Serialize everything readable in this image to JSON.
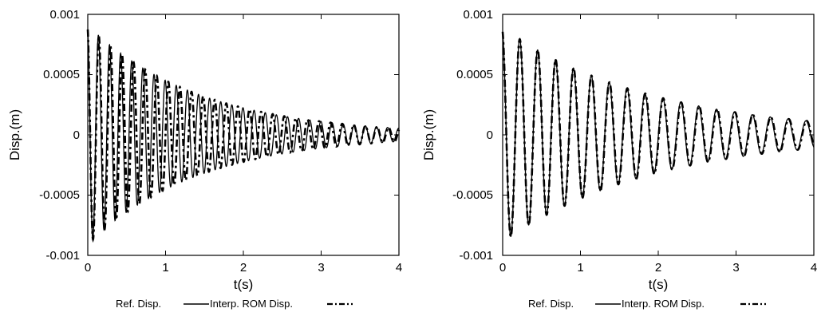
{
  "chart_data": [
    {
      "type": "line",
      "title": "",
      "xlabel": "t(s)",
      "ylabel": "Disp.(m)",
      "xlim": [
        0,
        4
      ],
      "ylim": [
        -0.001,
        0.001
      ],
      "xticks": [
        "0",
        "1",
        "2",
        "3",
        "4"
      ],
      "yticks": [
        "0.001",
        "0.0005",
        "0",
        "-0.0005",
        "-0.001"
      ],
      "grid": false,
      "legend_position": "bottom",
      "legend": [
        "Ref. Disp.",
        "Interp. ROM Disp."
      ],
      "series": [
        {
          "name": "Ref. Disp.",
          "style": "solid",
          "amplitude0": 0.00091,
          "decay_rate": 0.7,
          "period": 0.143,
          "phase": 1.85
        },
        {
          "name": "Interp. ROM Disp.",
          "style": "dashed",
          "amplitude0": 0.00091,
          "decay_rate": 0.7,
          "period": 0.149,
          "phase": 1.85
        }
      ]
    },
    {
      "type": "line",
      "title": "",
      "xlabel": "t(s)",
      "ylabel": "Disp.(m)",
      "xlim": [
        0,
        4
      ],
      "ylim": [
        -0.001,
        0.001
      ],
      "xticks": [
        "0",
        "1",
        "2",
        "3",
        "4"
      ],
      "yticks": [
        "0.001",
        "0.0005",
        "0",
        "-0.0005",
        "-0.001"
      ],
      "grid": false,
      "legend_position": "bottom",
      "legend": [
        "Ref. Disp.",
        "Interp. ROM Disp."
      ],
      "series": [
        {
          "name": "Ref. Disp.",
          "style": "solid",
          "amplitude0": 0.00089,
          "decay_rate": 0.52,
          "period": 0.23,
          "phase": 1.85
        },
        {
          "name": "Interp. ROM Disp.",
          "style": "dashed",
          "amplitude0": 0.00089,
          "decay_rate": 0.52,
          "period": 0.2305,
          "phase": 1.85
        }
      ]
    }
  ]
}
